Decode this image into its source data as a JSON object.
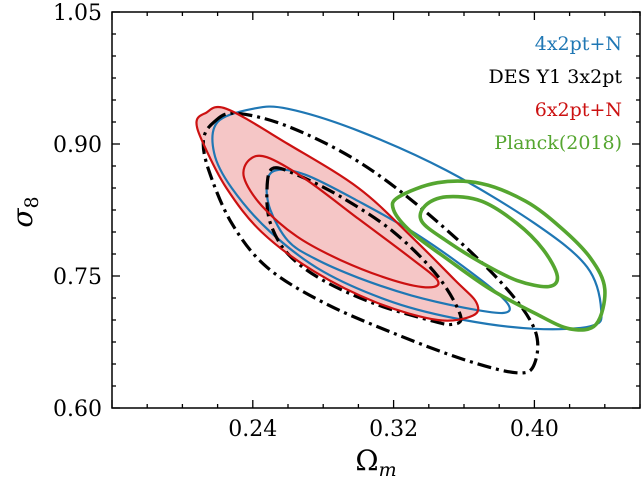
{
  "chart_data": {
    "type": "contour",
    "xlabel": "Ω",
    "xlabel_sub": "m",
    "ylabel": "σ",
    "ylabel_sub": "8",
    "xlim": [
      0.16,
      0.46
    ],
    "ylim": [
      0.6,
      1.05
    ],
    "xticks": [
      "0.24",
      "0.32",
      "0.40"
    ],
    "xtick_values": [
      0.24,
      0.32,
      0.4
    ],
    "yticks": [
      "0.60",
      "0.75",
      "0.90",
      "1.05"
    ],
    "ytick_values": [
      0.6,
      0.75,
      0.9,
      1.05
    ],
    "legend_position": "top-right",
    "series": [
      {
        "name": "4x2pt+N",
        "color": "#1f77b4",
        "style": "solid",
        "filled": false,
        "contours": [
          {
            "level": "68%",
            "points": [
              [
                0.253,
                0.87
              ],
              [
                0.27,
                0.865
              ],
              [
                0.3,
                0.835
              ],
              [
                0.335,
                0.795
              ],
              [
                0.37,
                0.745
              ],
              [
                0.385,
                0.718
              ],
              [
                0.382,
                0.708
              ],
              [
                0.36,
                0.714
              ],
              [
                0.33,
                0.728
              ],
              [
                0.3,
                0.748
              ],
              [
                0.275,
                0.77
              ],
              [
                0.26,
                0.79
              ],
              [
                0.25,
                0.825
              ],
              [
                0.248,
                0.855
              ]
            ]
          },
          {
            "level": "95%",
            "points": [
              [
                0.22,
                0.925
              ],
              [
                0.24,
                0.94
              ],
              [
                0.26,
                0.94
              ],
              [
                0.3,
                0.915
              ],
              [
                0.35,
                0.87
              ],
              [
                0.4,
                0.81
              ],
              [
                0.43,
                0.76
              ],
              [
                0.438,
                0.71
              ],
              [
                0.432,
                0.693
              ],
              [
                0.4,
                0.69
              ],
              [
                0.36,
                0.7
              ],
              [
                0.32,
                0.72
              ],
              [
                0.28,
                0.755
              ],
              [
                0.25,
                0.8
              ],
              [
                0.228,
                0.85
              ],
              [
                0.218,
                0.89
              ]
            ]
          }
        ]
      },
      {
        "name": "DES Y1 3x2pt",
        "color": "#000000",
        "style": "dashdot",
        "filled": false,
        "contours": [
          {
            "level": "68%",
            "points": [
              [
                0.251,
                0.872
              ],
              [
                0.265,
                0.865
              ],
              [
                0.29,
                0.84
              ],
              [
                0.32,
                0.8
              ],
              [
                0.345,
                0.75
              ],
              [
                0.358,
                0.705
              ],
              [
                0.353,
                0.695
              ],
              [
                0.34,
                0.7
              ],
              [
                0.31,
                0.718
              ],
              [
                0.28,
                0.745
              ],
              [
                0.26,
                0.775
              ],
              [
                0.25,
                0.81
              ],
              [
                0.248,
                0.845
              ]
            ]
          },
          {
            "level": "95%",
            "points": [
              [
                0.218,
                0.925
              ],
              [
                0.23,
                0.935
              ],
              [
                0.26,
                0.92
              ],
              [
                0.3,
                0.88
              ],
              [
                0.34,
                0.82
              ],
              [
                0.38,
                0.745
              ],
              [
                0.4,
                0.69
              ],
              [
                0.4,
                0.65
              ],
              [
                0.39,
                0.64
              ],
              [
                0.36,
                0.655
              ],
              [
                0.32,
                0.685
              ],
              [
                0.28,
                0.72
              ],
              [
                0.248,
                0.76
              ],
              [
                0.228,
                0.81
              ],
              [
                0.215,
                0.87
              ],
              [
                0.212,
                0.905
              ]
            ]
          }
        ]
      },
      {
        "name": "6x2pt+N",
        "color": "#cc1111",
        "style": "solid",
        "filled": true,
        "fill_inner": "#e67373",
        "fill_outer": "#f5c6c6",
        "contours": [
          {
            "level": "68%",
            "points": [
              [
                0.238,
                0.882
              ],
              [
                0.248,
                0.885
              ],
              [
                0.27,
                0.86
              ],
              [
                0.3,
                0.815
              ],
              [
                0.33,
                0.77
              ],
              [
                0.345,
                0.745
              ],
              [
                0.34,
                0.737
              ],
              [
                0.32,
                0.745
              ],
              [
                0.29,
                0.768
              ],
              [
                0.265,
                0.795
              ],
              [
                0.245,
                0.83
              ],
              [
                0.235,
                0.862
              ]
            ]
          },
          {
            "level": "95%",
            "points": [
              [
                0.213,
                0.935
              ],
              [
                0.225,
                0.94
              ],
              [
                0.26,
                0.9
              ],
              [
                0.3,
                0.85
              ],
              [
                0.33,
                0.795
              ],
              [
                0.355,
                0.745
              ],
              [
                0.367,
                0.72
              ],
              [
                0.365,
                0.705
              ],
              [
                0.345,
                0.7
              ],
              [
                0.31,
                0.72
              ],
              [
                0.275,
                0.755
              ],
              [
                0.245,
                0.8
              ],
              [
                0.225,
                0.85
              ],
              [
                0.212,
                0.9
              ],
              [
                0.208,
                0.925
              ]
            ]
          }
        ]
      },
      {
        "name": "Planck(2018)",
        "color": "#55a630",
        "style": "solid",
        "filled": false,
        "contours": [
          {
            "level": "68%",
            "points": [
              [
                0.338,
                0.83
              ],
              [
                0.35,
                0.84
              ],
              [
                0.37,
                0.835
              ],
              [
                0.39,
                0.81
              ],
              [
                0.405,
                0.78
              ],
              [
                0.413,
                0.75
              ],
              [
                0.408,
                0.738
              ],
              [
                0.39,
                0.745
              ],
              [
                0.37,
                0.765
              ],
              [
                0.35,
                0.79
              ],
              [
                0.336,
                0.812
              ]
            ]
          },
          {
            "level": "95%",
            "points": [
              [
                0.323,
                0.84
              ],
              [
                0.345,
                0.856
              ],
              [
                0.37,
                0.855
              ],
              [
                0.395,
                0.835
              ],
              [
                0.415,
                0.805
              ],
              [
                0.432,
                0.77
              ],
              [
                0.44,
                0.735
              ],
              [
                0.435,
                0.695
              ],
              [
                0.42,
                0.69
              ],
              [
                0.4,
                0.708
              ],
              [
                0.375,
                0.735
              ],
              [
                0.35,
                0.77
              ],
              [
                0.33,
                0.8
              ],
              [
                0.32,
                0.825
              ]
            ]
          }
        ]
      }
    ]
  }
}
